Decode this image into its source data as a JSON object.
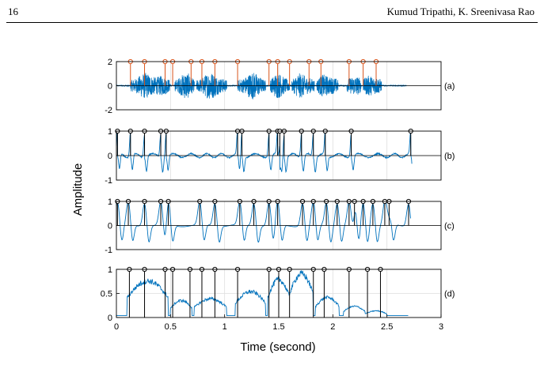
{
  "header": {
    "page_number": "16",
    "authors": "Kumud Tripathi, K. Sreenivasa Rao"
  },
  "chart_data": {
    "type": "line",
    "xlabel": "Time (second)",
    "ylabel": "Amplitude",
    "x_ticks": [
      "0",
      "0.5",
      "1",
      "1.5",
      "2",
      "2.5",
      "3"
    ],
    "xlim": [
      0,
      3
    ],
    "grid": true,
    "panels": [
      {
        "label": "(a)",
        "ylim": [
          -2,
          2
        ],
        "y_ticks": [
          {
            "v": 2,
            "t": "2"
          },
          {
            "v": 0,
            "t": "0"
          },
          {
            "v": -2,
            "t": "-2"
          }
        ],
        "signal": "speech waveform",
        "signal_color": "#0072bd",
        "marker_color": "#d95319",
        "marker_height": 2,
        "markers": [
          0.13,
          0.26,
          0.45,
          0.52,
          0.69,
          0.79,
          0.91,
          1.12,
          1.41,
          1.49,
          1.6,
          1.78,
          1.89,
          2.15,
          2.28,
          2.4
        ]
      },
      {
        "label": "(b)",
        "ylim": [
          -1,
          1
        ],
        "y_ticks": [
          {
            "v": 1,
            "t": "1"
          },
          {
            "v": 0,
            "t": "0"
          },
          {
            "v": -1,
            "t": "-1"
          }
        ],
        "signal_color": "#0072bd",
        "marker_color": "#000000",
        "marker_height": 1,
        "markers": [
          0.01,
          0.13,
          0.26,
          0.41,
          0.46,
          1.12,
          1.16,
          1.41,
          1.49,
          1.51,
          1.55,
          1.71,
          1.82,
          1.93,
          2.17,
          2.72
        ]
      },
      {
        "label": "(c)",
        "ylim": [
          -1,
          1
        ],
        "y_ticks": [
          {
            "v": 1,
            "t": "1"
          },
          {
            "v": 0,
            "t": "0"
          },
          {
            "v": -1,
            "t": "-1"
          }
        ],
        "signal_color": "#0072bd",
        "marker_color": "#000000",
        "marker_height": 1,
        "markers": [
          0.01,
          0.11,
          0.26,
          0.41,
          0.48,
          0.77,
          0.91,
          1.14,
          1.27,
          1.41,
          1.49,
          1.72,
          1.82,
          1.94,
          2.04,
          2.15,
          2.2,
          2.28,
          2.37,
          2.48,
          2.52,
          2.7
        ]
      },
      {
        "label": "(d)",
        "ylim": [
          0,
          1
        ],
        "y_ticks": [
          {
            "v": 1,
            "t": "1"
          },
          {
            "v": 0.5,
            "t": "0.5"
          },
          {
            "v": 0,
            "t": "0"
          }
        ],
        "signal_color": "#0072bd",
        "marker_color": "#000000",
        "marker_height": 1,
        "markers": [
          0.12,
          0.26,
          0.45,
          0.52,
          0.68,
          0.79,
          0.91,
          1.12,
          1.41,
          1.5,
          1.6,
          1.82,
          1.92,
          2.15,
          2.32,
          2.44
        ]
      }
    ]
  }
}
